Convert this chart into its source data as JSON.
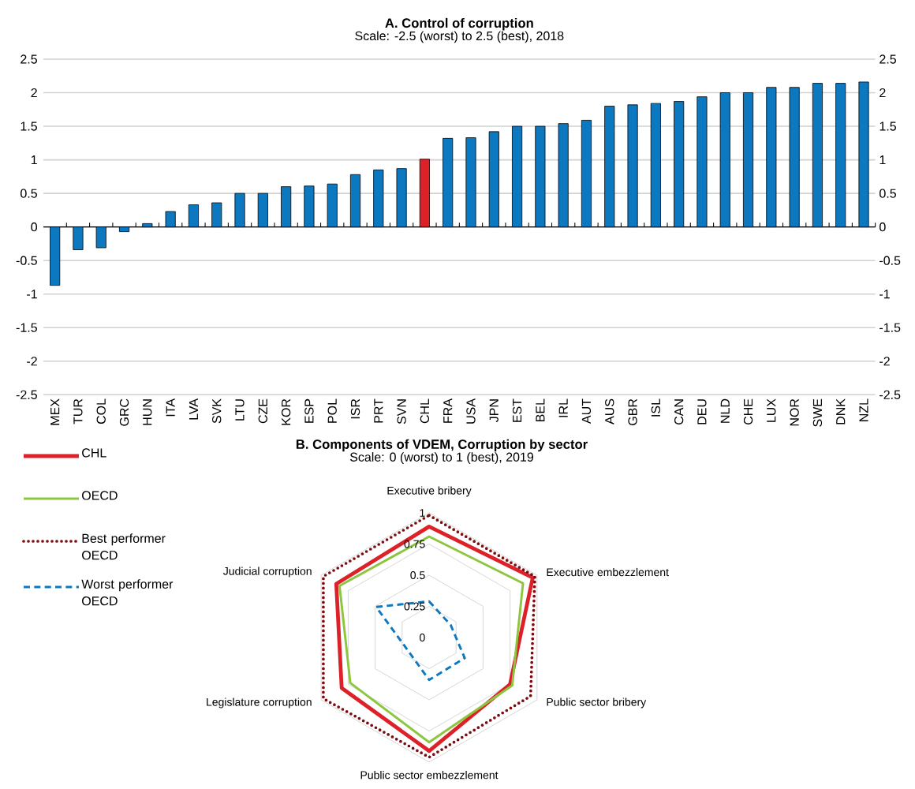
{
  "chart_data": [
    {
      "type": "bar",
      "title": "A. Control of corruption",
      "subtitle": "Scale: -2.5 (worst) to 2.5 (best), 2018",
      "categories": [
        "MEX",
        "TUR",
        "COL",
        "GRC",
        "HUN",
        "ITA",
        "LVA",
        "SVK",
        "LTU",
        "CZE",
        "KOR",
        "ESP",
        "POL",
        "ISR",
        "PRT",
        "SVN",
        "CHL",
        "FRA",
        "USA",
        "JPN",
        "EST",
        "BEL",
        "IRL",
        "AUT",
        "AUS",
        "GBR",
        "ISL",
        "CAN",
        "DEU",
        "NLD",
        "CHE",
        "LUX",
        "NOR",
        "SWE",
        "DNK",
        "NZL"
      ],
      "values": [
        -0.87,
        -0.34,
        -0.31,
        -0.07,
        0.05,
        0.23,
        0.33,
        0.36,
        0.5,
        0.5,
        0.6,
        0.61,
        0.64,
        0.78,
        0.85,
        0.87,
        1.01,
        1.32,
        1.33,
        1.42,
        1.5,
        1.5,
        1.54,
        1.59,
        1.8,
        1.82,
        1.84,
        1.87,
        1.94,
        2.0,
        2.0,
        2.08,
        2.08,
        2.14,
        2.14,
        2.16
      ],
      "colors": [
        "#0c78c0",
        "#0c78c0",
        "#0c78c0",
        "#0c78c0",
        "#0c78c0",
        "#0c78c0",
        "#0c78c0",
        "#0c78c0",
        "#0c78c0",
        "#0c78c0",
        "#0c78c0",
        "#0c78c0",
        "#0c78c0",
        "#0c78c0",
        "#0c78c0",
        "#0c78c0",
        "#dc2128",
        "#0c78c0",
        "#0c78c0",
        "#0c78c0",
        "#0c78c0",
        "#0c78c0",
        "#0c78c0",
        "#0c78c0",
        "#0c78c0",
        "#0c78c0",
        "#0c78c0",
        "#0c78c0",
        "#0c78c0",
        "#0c78c0",
        "#0c78c0",
        "#0c78c0",
        "#0c78c0",
        "#0c78c0",
        "#0c78c0",
        "#0c78c0"
      ],
      "ylim": [
        -2.5,
        2.5
      ],
      "yticks": [
        -2.5,
        -2,
        -1.5,
        -1,
        -0.5,
        0,
        0.5,
        1,
        1.5,
        2,
        2.5
      ],
      "y2lim": [
        -2.5,
        2.5
      ],
      "y2ticks": [
        -2.5,
        -2,
        -1.5,
        -1,
        -0.5,
        0,
        0.5,
        1,
        1.5,
        2,
        2.5
      ],
      "grid": "y"
    },
    {
      "type": "radar",
      "title": "B. Components of VDEM, Corruption by sector",
      "subtitle": "Scale: 0 (worst) to 1 (best), 2019",
      "categories": [
        "Executive bribery",
        "Executive embezzlement",
        "Public sector bribery",
        "Public sector embezzlement",
        "Legislature corruption",
        "Judicial corruption"
      ],
      "series": [
        {
          "name": "CHL",
          "color": "#dc2128",
          "line_style": "solid",
          "values": [
            0.89,
            0.96,
            0.75,
            0.91,
            0.81,
            0.86
          ]
        },
        {
          "name": "OECD",
          "color": "#8cc63f",
          "line_style": "solid",
          "values": [
            0.81,
            0.87,
            0.77,
            0.84,
            0.73,
            0.83
          ]
        },
        {
          "name": "Best performer OECD",
          "color": "#7a0c10",
          "line_style": "dotted",
          "values": [
            0.98,
            0.98,
            0.94,
            0.96,
            0.98,
            0.98
          ]
        },
        {
          "name": "Worst performer OECD",
          "color": "#0c78c0",
          "line_style": "dashed",
          "values": [
            0.29,
            0.2,
            0.33,
            0.34,
            0.2,
            0.49
          ]
        }
      ],
      "ylim": [
        0,
        1
      ],
      "yticks": [
        0,
        0.25,
        0.5,
        0.75,
        1
      ],
      "grid": true,
      "legend": "left"
    }
  ]
}
